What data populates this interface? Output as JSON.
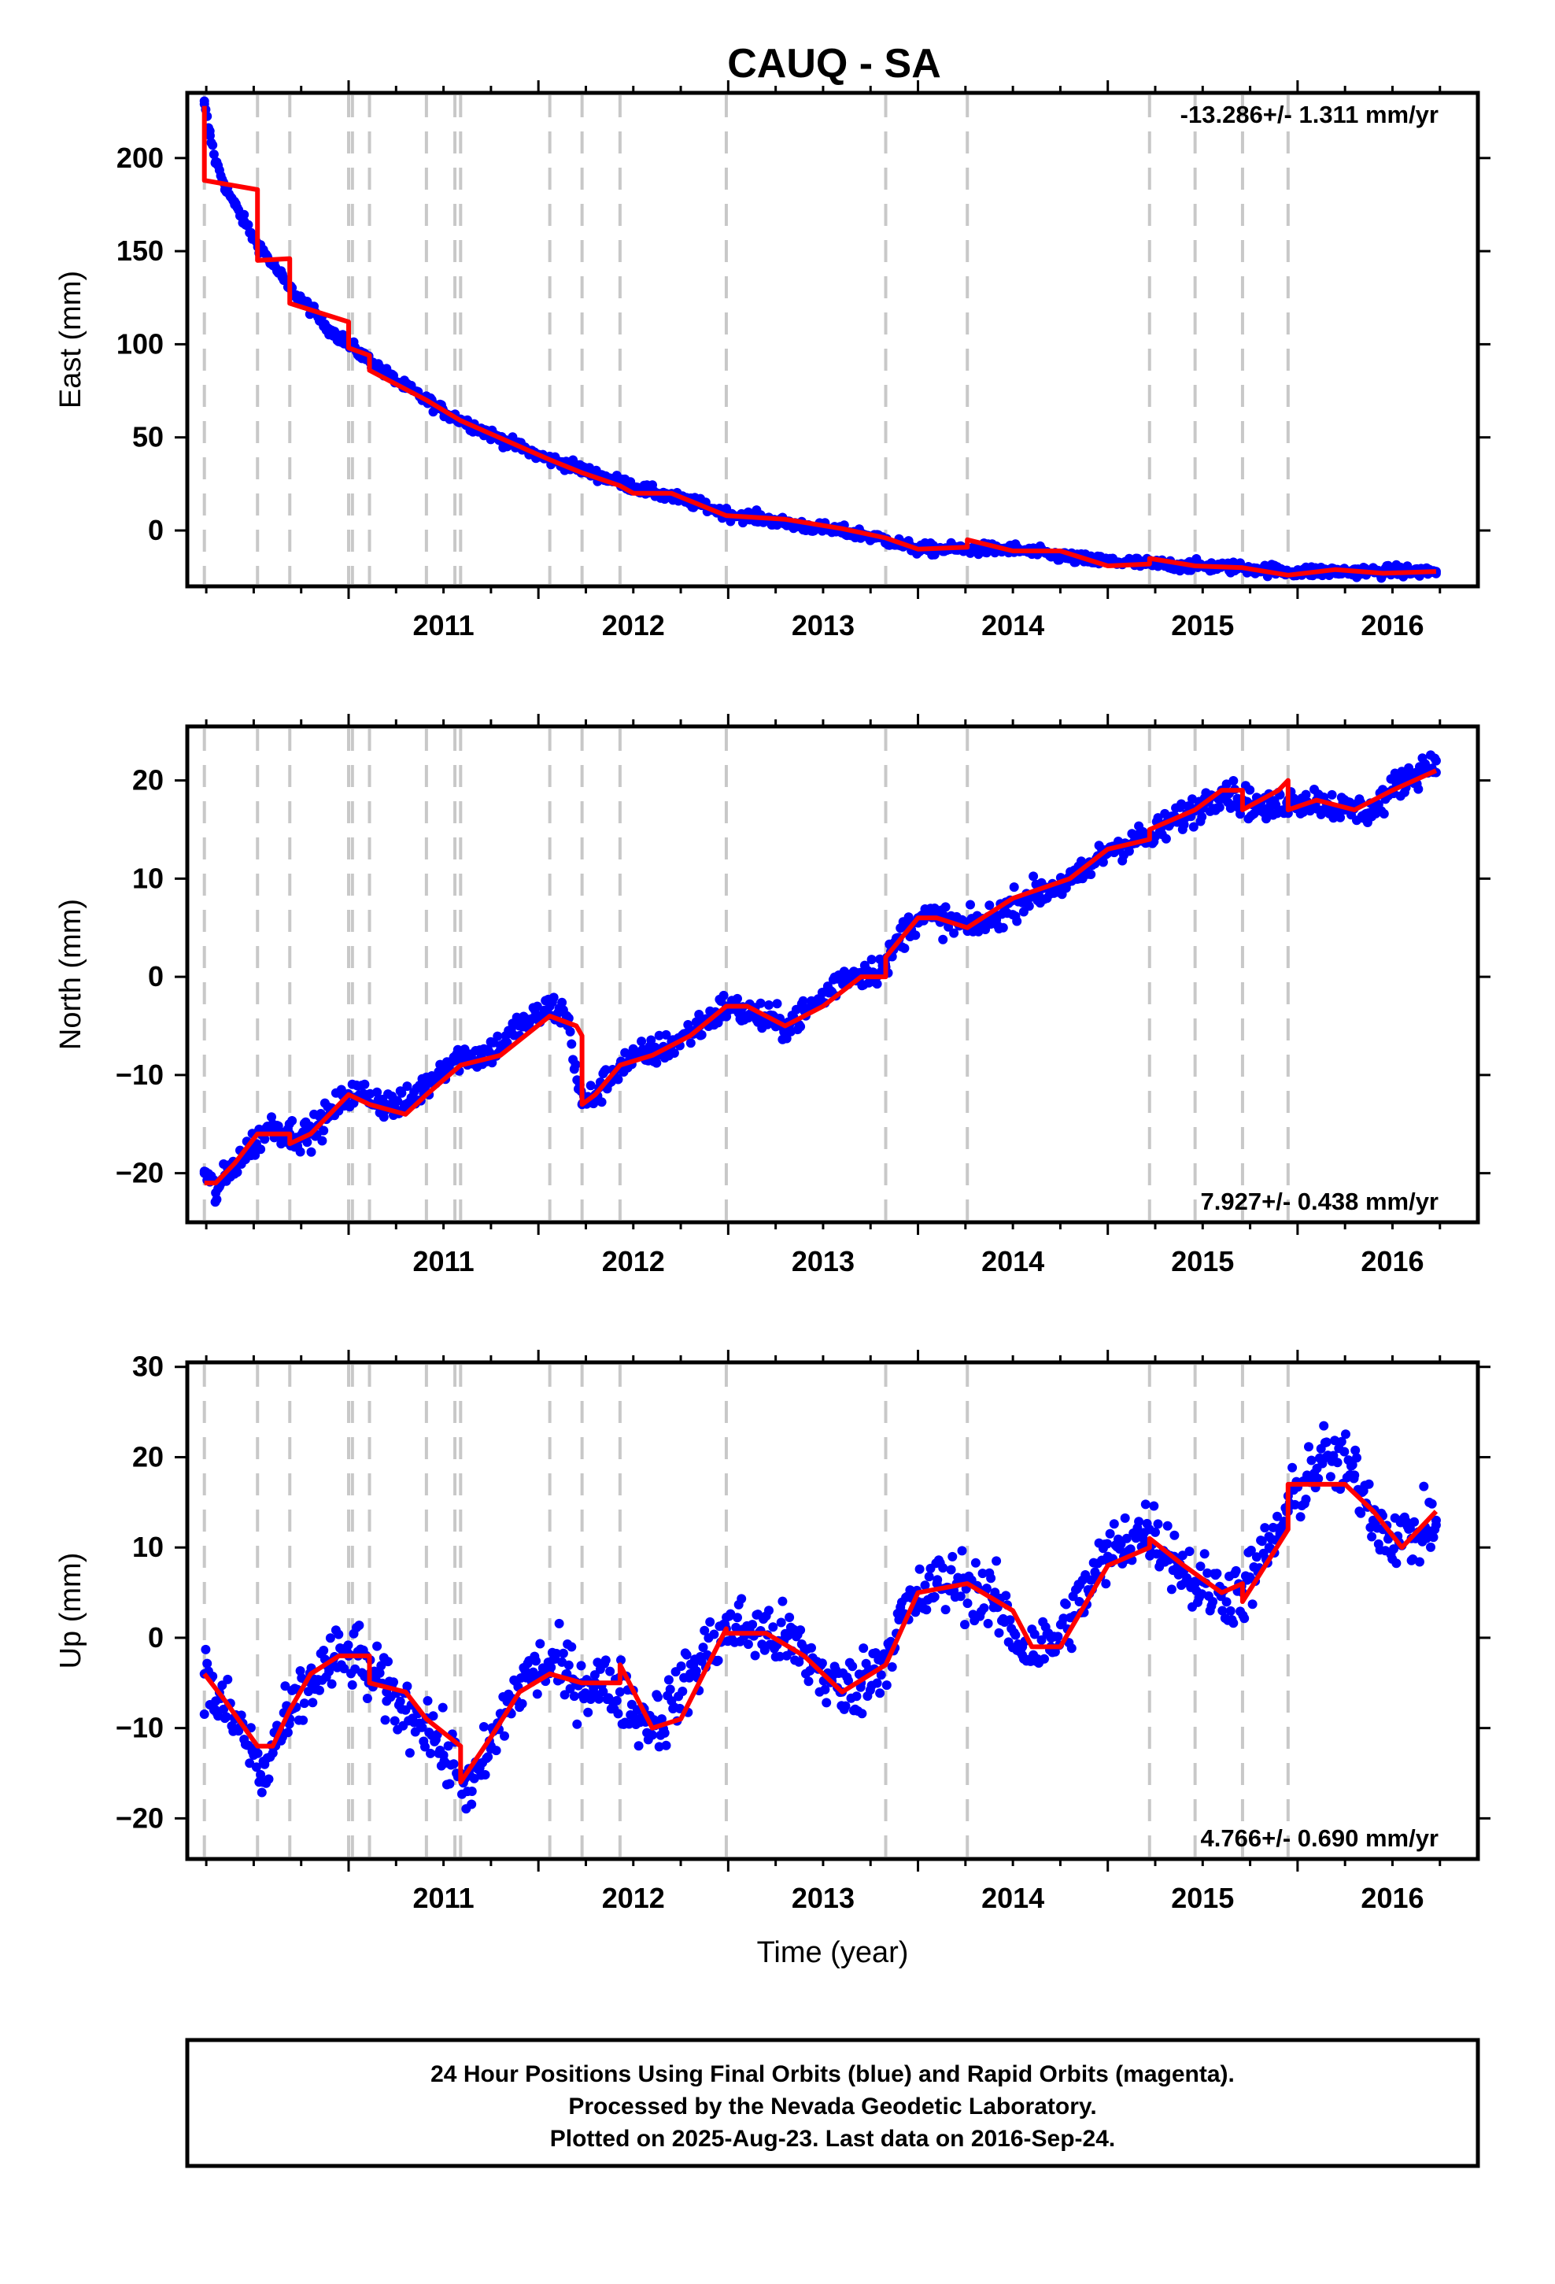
{
  "chart_data": {
    "type": "scatter",
    "title": "CAUQ - SA",
    "xlabel": "Time (year)",
    "x_tick_labels": [
      "2011",
      "2012",
      "2013",
      "2014",
      "2015",
      "2016"
    ],
    "xlim": [
      2010.15,
      2016.95
    ],
    "colors": {
      "final": "#0000ff",
      "model": "#ff0000",
      "offset_lines": "#c8c8c8"
    },
    "offset_epochs": [
      2010.24,
      2010.52,
      2010.69,
      2011.0,
      2011.02,
      2011.11,
      2011.41,
      2011.56,
      2011.59,
      2012.06,
      2012.23,
      2012.43,
      2012.99,
      2013.83,
      2014.26,
      2015.22,
      2015.46,
      2015.71,
      2015.95
    ],
    "panels": [
      {
        "name": "east",
        "ylabel": "East (mm)",
        "rate_label": "-13.286+/- 1.311 mm/yr",
        "rate_position": "top-right",
        "ylim": [
          -30,
          235
        ],
        "y_ticks": [
          0,
          50,
          100,
          150,
          200
        ],
        "y_tick_labels": [
          "0",
          "50",
          "100",
          "150",
          "200"
        ],
        "series": [
          {
            "name": "Final Orbits",
            "style": "points",
            "x": [
              2010.24,
              2010.27,
              2010.3,
              2010.35,
              2010.4,
              2010.45,
              2010.5,
              2010.55,
              2010.6,
              2010.65,
              2010.69,
              2010.75,
              2010.8,
              2010.85,
              2010.9,
              2010.95,
              2011.0,
              2011.05,
              2011.1,
              2011.15,
              2011.2,
              2011.3,
              2011.41,
              2011.5,
              2011.6,
              2011.7,
              2011.8,
              2011.9,
              2012.0,
              2012.1,
              2012.2,
              2012.3,
              2012.43,
              2012.55,
              2012.7,
              2012.85,
              2012.99,
              2013.15,
              2013.3,
              2013.5,
              2013.7,
              2013.83,
              2014.0,
              2014.26,
              2014.5,
              2014.7,
              2014.9,
              2015.1,
              2015.22,
              2015.46,
              2015.71,
              2015.95,
              2016.2,
              2016.45,
              2016.73
            ],
            "y": [
              229,
              212,
              198,
              185,
              175,
              166,
              157,
              150,
              143,
              136,
              130,
              124,
              119,
              113,
              108,
              104,
              100,
              96,
              92,
              88,
              84,
              77,
              70,
              64,
              59,
              54,
              49,
              45,
              40,
              37,
              34,
              30,
              26,
              22,
              18,
              14,
              9,
              7,
              4,
              1,
              -2,
              -5,
              -10,
              -10,
              -10,
              -13,
              -16,
              -17,
              -18,
              -19,
              -20,
              -22,
              -22,
              -22,
              -22
            ]
          },
          {
            "name": "Model",
            "style": "line",
            "x": [
              2010.24,
              2010.24,
              2010.52,
              2010.52,
              2010.69,
              2010.69,
              2011.0,
              2011.0,
              2011.11,
              2011.11,
              2011.41,
              2011.59,
              2012.06,
              2012.23,
              2012.43,
              2012.5,
              2012.7,
              2012.99,
              2013.3,
              2013.6,
              2013.83,
              2014.0,
              2014.26,
              2014.26,
              2014.5,
              2014.75,
              2015.0,
              2015.22,
              2015.22,
              2015.46,
              2015.71,
              2015.95,
              2016.2,
              2016.45,
              2016.73
            ],
            "y": [
              228,
              188,
              183,
              145,
              146,
              122,
              112,
              98,
              94,
              86,
              70,
              59,
              38,
              31,
              24,
              20,
              20,
              8,
              6,
              1,
              -4,
              -10,
              -9,
              -5,
              -11,
              -11,
              -19,
              -18,
              -15,
              -19,
              -20,
              -24,
              -21,
              -23,
              -22
            ]
          }
        ]
      },
      {
        "name": "north",
        "ylabel": "North (mm)",
        "rate_label": "7.927+/- 0.438 mm/yr",
        "rate_position": "bottom-right",
        "ylim": [
          -25,
          25.5
        ],
        "y_ticks": [
          -20,
          -10,
          0,
          10,
          20
        ],
        "y_tick_labels": [
          "−20",
          "−10",
          "0",
          "10",
          "20"
        ],
        "series": [
          {
            "name": "Final Orbits",
            "style": "points",
            "x": [
              2010.24,
              2010.3,
              2010.4,
              2010.5,
              2010.6,
              2010.69,
              2010.8,
              2010.9,
              2011.0,
              2011.1,
              2011.2,
              2011.3,
              2011.41,
              2011.5,
              2011.6,
              2011.7,
              2011.8,
              2011.9,
              2012.0,
              2012.06,
              2012.15,
              2012.23,
              2012.3,
              2012.43,
              2012.55,
              2012.7,
              2012.85,
              2012.99,
              2013.15,
              2013.3,
              2013.45,
              2013.6,
              2013.83,
              2013.9,
              2014.0,
              2014.1,
              2014.26,
              2014.4,
              2014.55,
              2014.7,
              2014.85,
              2015.0,
              2015.15,
              2015.22,
              2015.35,
              2015.46,
              2015.6,
              2015.71,
              2015.85,
              2015.95,
              2016.1,
              2016.25,
              2016.4,
              2016.55,
              2016.73
            ],
            "y": [
              -20,
              -22,
              -19,
              -17,
              -15,
              -16,
              -16,
              -14,
              -12,
              -12,
              -13,
              -13,
              -11,
              -9,
              -8,
              -8,
              -7,
              -5,
              -4,
              -3,
              -4,
              -13,
              -12,
              -9,
              -8,
              -7,
              -5,
              -3,
              -4,
              -5,
              -3,
              0,
              1,
              4,
              6,
              6,
              5,
              6,
              8,
              9,
              10,
              13,
              14,
              14,
              16,
              17,
              19,
              18,
              17,
              18,
              18,
              17,
              17,
              20,
              22
            ]
          },
          {
            "name": "Model",
            "style": "line",
            "x": [
              2010.24,
              2010.3,
              2010.4,
              2010.52,
              2010.69,
              2010.69,
              2010.8,
              2011.0,
              2011.11,
              2011.3,
              2011.41,
              2011.59,
              2011.8,
              2012.06,
              2012.2,
              2012.23,
              2012.23,
              2012.3,
              2012.43,
              2012.6,
              2012.8,
              2012.99,
              2013.1,
              2013.3,
              2013.5,
              2013.7,
              2013.83,
              2013.83,
              2014.0,
              2014.1,
              2014.26,
              2014.5,
              2014.8,
              2015.0,
              2015.22,
              2015.22,
              2015.46,
              2015.6,
              2015.71,
              2015.71,
              2015.9,
              2015.95,
              2015.95,
              2016.1,
              2016.3,
              2016.5,
              2016.73
            ],
            "y": [
              -21,
              -21,
              -19,
              -16,
              -16,
              -17,
              -16,
              -12,
              -13,
              -14,
              -12,
              -9,
              -8,
              -4,
              -5,
              -6,
              -13,
              -12,
              -9,
              -8,
              -6,
              -3,
              -3,
              -5,
              -3,
              0,
              0,
              2,
              6,
              6,
              5,
              8,
              10,
              13,
              14,
              15,
              17,
              19,
              19,
              17,
              19,
              20,
              17,
              18,
              17,
              19,
              21
            ]
          }
        ]
      },
      {
        "name": "up",
        "ylabel": "Up (mm)",
        "rate_label": "4.766+/- 0.690 mm/yr",
        "rate_position": "bottom-right",
        "ylim": [
          -24.5,
          30.5
        ],
        "y_ticks": [
          -20,
          -10,
          0,
          10,
          20,
          30
        ],
        "y_tick_labels": [
          "−20",
          "−10",
          "0",
          "10",
          "20",
          "30"
        ],
        "series": [
          {
            "name": "Final Orbits",
            "style": "points",
            "x": [
              2010.24,
              2010.3,
              2010.4,
              2010.5,
              2010.55,
              2010.6,
              2010.69,
              2010.8,
              2010.9,
              2011.0,
              2011.05,
              2011.11,
              2011.2,
              2011.3,
              2011.41,
              2011.5,
              2011.59,
              2011.65,
              2011.75,
              2011.85,
              2011.95,
              2012.06,
              2012.15,
              2012.23,
              2012.3,
              2012.43,
              2012.55,
              2012.65,
              2012.8,
              2012.99,
              2013.1,
              2013.3,
              2013.45,
              2013.6,
              2013.7,
              2013.83,
              2013.9,
              2014.0,
              2014.1,
              2014.26,
              2014.4,
              2014.55,
              2014.7,
              2014.85,
              2015.0,
              2015.1,
              2015.22,
              2015.35,
              2015.46,
              2015.6,
              2015.71,
              2015.85,
              2015.95,
              2016.05,
              2016.15,
              2016.3,
              2016.45,
              2016.6,
              2016.73
            ],
            "y": [
              -4,
              -7,
              -9,
              -13,
              -16,
              -12,
              -9,
              -5,
              -3,
              -2,
              -2,
              -4,
              -6,
              -8,
              -9,
              -13,
              -15,
              -17,
              -12,
              -7,
              -4,
              -3,
              -4,
              -5,
              -5,
              -6,
              -9,
              -9,
              -4,
              1,
              1,
              0,
              -3,
              -6,
              -5,
              -2,
              2,
              4,
              6,
              6,
              4,
              -1,
              -1,
              4,
              9,
              11,
              12,
              9,
              6,
              5,
              5,
              10,
              14,
              18,
              20,
              18,
              12,
              11,
              13
            ]
          },
          {
            "name": "Model",
            "style": "line",
            "x": [
              2010.24,
              2010.35,
              2010.52,
              2010.6,
              2010.69,
              2010.8,
              2010.95,
              2011.0,
              2011.11,
              2011.11,
              2011.3,
              2011.41,
              2011.59,
              2011.59,
              2011.75,
              2011.9,
              2012.06,
              2012.23,
              2012.43,
              2012.43,
              2012.6,
              2012.75,
              2012.99,
              2012.99,
              2013.2,
              2013.4,
              2013.6,
              2013.83,
              2014.0,
              2014.26,
              2014.5,
              2014.6,
              2014.75,
              2015.0,
              2015.22,
              2015.22,
              2015.4,
              2015.6,
              2015.71,
              2015.71,
              2015.8,
              2015.95,
              2015.95,
              2016.1,
              2016.25,
              2016.4,
              2016.55,
              2016.73
            ],
            "y": [
              -4,
              -7,
              -12,
              -12,
              -8,
              -4,
              -2,
              -2,
              -2,
              -5,
              -6,
              -9,
              -12,
              -16,
              -11,
              -6,
              -4,
              -5,
              -5,
              -3,
              -10,
              -9,
              1,
              0.5,
              0.5,
              -2,
              -6,
              -3,
              5,
              6,
              3,
              -1,
              -1,
              8,
              10,
              11,
              8,
              5,
              6,
              4,
              7,
              12,
              17,
              17,
              17,
              14,
              10,
              14
            ]
          }
        ]
      }
    ],
    "caption": [
      "24 Hour Positions Using Final Orbits (blue) and Rapid Orbits (magenta).",
      "Processed by the Nevada Geodetic Laboratory.",
      "Plotted on 2025-Aug-23. Last data on 2016-Sep-24."
    ]
  }
}
